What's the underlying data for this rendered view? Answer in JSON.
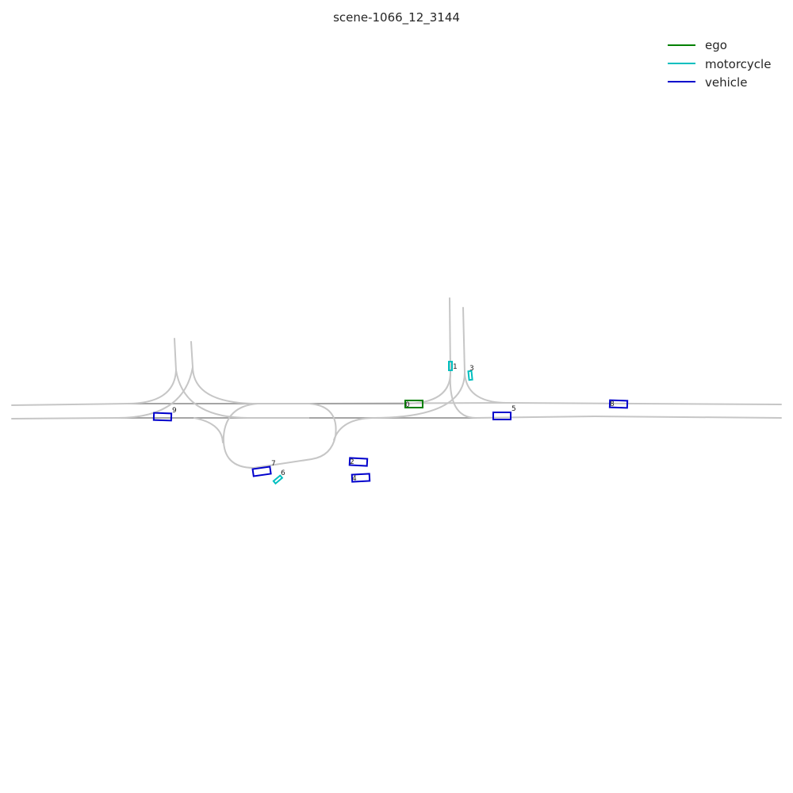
{
  "title": "scene-1066_12_3144",
  "legend": [
    {
      "label": "ego",
      "color": "#008000"
    },
    {
      "label": "motorcycle",
      "color": "#00bfbf"
    },
    {
      "label": "vehicle",
      "color": "#0000cc"
    }
  ],
  "agents": [
    {
      "id": "0",
      "category": "ego"
    },
    {
      "id": "1",
      "category": "motorcycle"
    },
    {
      "id": "2",
      "category": "vehicle"
    },
    {
      "id": "3",
      "category": "motorcycle"
    },
    {
      "id": "4",
      "category": "vehicle"
    },
    {
      "id": "5",
      "category": "vehicle"
    },
    {
      "id": "6",
      "category": "motorcycle"
    },
    {
      "id": "7",
      "category": "vehicle"
    },
    {
      "id": "8",
      "category": "vehicle"
    },
    {
      "id": "9",
      "category": "vehicle"
    }
  ]
}
